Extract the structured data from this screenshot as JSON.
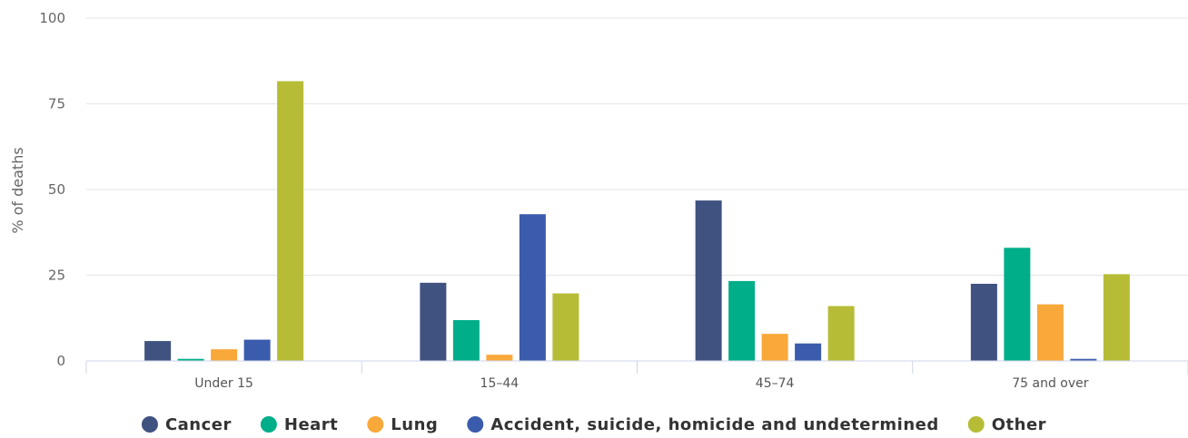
{
  "chart_data": {
    "type": "bar",
    "title": "",
    "xlabel": "",
    "ylabel": "% of deaths",
    "ylim": [
      0,
      100
    ],
    "yticks": [
      0,
      25,
      50,
      75,
      100
    ],
    "grid": true,
    "legend_position": "bottom",
    "categories": [
      "Under 15",
      "15–44",
      "45–74",
      "75 and over"
    ],
    "series": [
      {
        "name": "Cancer",
        "color": "#3f5280",
        "values": [
          5.8,
          22.8,
          46.8,
          22.5
        ]
      },
      {
        "name": "Heart",
        "color": "#00ae8a",
        "values": [
          0.6,
          11.9,
          23.3,
          33.0
        ]
      },
      {
        "name": "Lung",
        "color": "#f9a83a",
        "values": [
          3.4,
          1.8,
          7.9,
          16.5
        ]
      },
      {
        "name": "Accident, suicide, homicide and undetermined",
        "color": "#3b5cad",
        "values": [
          6.2,
          42.8,
          5.1,
          0.6
        ]
      },
      {
        "name": "Other",
        "color": "#b6bc36",
        "values": [
          81.6,
          19.7,
          16.0,
          25.3
        ]
      }
    ]
  }
}
